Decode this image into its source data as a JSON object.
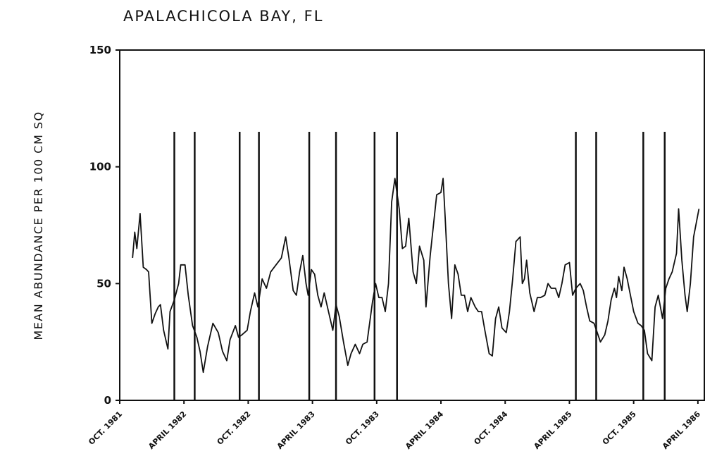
{
  "chart_data": {
    "type": "line",
    "title": "APALACHICOLA BAY, FL",
    "y_label": "MEAN ABUNDANCE PER 100 CM SQ",
    "xlim": [
      0,
      54.6
    ],
    "ylim": [
      0,
      150
    ],
    "yticks": [
      0,
      50,
      100,
      150
    ],
    "xticks": [
      {
        "value": 0,
        "label": "OCT. 1981"
      },
      {
        "value": 6,
        "label": "APRIL 1982"
      },
      {
        "value": 12,
        "label": "OCT. 1982"
      },
      {
        "value": 18,
        "label": "APRIL 1983"
      },
      {
        "value": 24,
        "label": "OCT. 1983"
      },
      {
        "value": 30,
        "label": "APRIL 1984"
      },
      {
        "value": 36,
        "label": "OCT. 1984"
      },
      {
        "value": 42,
        "label": "APRIL 1985"
      },
      {
        "value": 48,
        "label": "OCT. 1985"
      },
      {
        "value": 54,
        "label": "APRIL 1986"
      }
    ],
    "color": "#111111",
    "x": [
      1.2,
      1.4,
      1.6,
      1.9,
      2.2,
      2.5,
      2.7,
      3.0,
      3.3,
      3.6,
      3.8,
      4.1,
      4.5,
      4.7,
      5.1,
      5.5,
      5.7,
      6.1,
      6.4,
      6.8,
      7.2,
      7.5,
      7.8,
      8.2,
      8.7,
      9.2,
      9.6,
      10.0,
      10.3,
      10.8,
      11.1,
      11.4,
      11.9,
      12.2,
      12.6,
      12.9,
      13.3,
      13.7,
      14.1,
      14.6,
      15.1,
      15.5,
      15.8,
      16.2,
      16.5,
      16.8,
      17.1,
      17.4,
      17.6,
      17.9,
      18.2,
      18.5,
      18.8,
      19.1,
      19.5,
      19.9,
      20.2,
      20.5,
      20.9,
      21.3,
      21.6,
      22.0,
      22.4,
      22.7,
      23.1,
      23.6,
      23.9,
      24.2,
      24.5,
      24.8,
      25.1,
      25.4,
      25.7,
      26.1,
      26.4,
      26.7,
      27.0,
      27.4,
      27.7,
      28.0,
      28.4,
      28.6,
      29.0,
      29.3,
      29.6,
      30.0,
      30.2,
      30.4,
      30.7,
      31.0,
      31.3,
      31.6,
      31.9,
      32.2,
      32.5,
      32.8,
      33.2,
      33.5,
      33.8,
      34.1,
      34.5,
      34.8,
      35.1,
      35.4,
      35.7,
      36.1,
      36.4,
      36.7,
      37.0,
      37.4,
      37.6,
      37.8,
      38.0,
      38.3,
      38.7,
      39.0,
      39.3,
      39.7,
      40.0,
      40.3,
      40.7,
      41.0,
      41.3,
      41.6,
      42.0,
      42.3,
      42.6,
      43.0,
      43.3,
      43.6,
      43.9,
      44.3,
      44.6,
      44.9,
      45.3,
      45.6,
      45.9,
      46.2,
      46.4,
      46.6,
      46.9,
      47.1,
      47.4,
      47.7,
      48.0,
      48.4,
      48.7,
      49.0,
      49.3,
      49.7,
      50.0,
      50.3,
      50.7,
      51.0,
      51.3,
      51.6,
      52.0,
      52.2,
      52.5,
      52.8,
      53.0,
      53.3,
      53.6,
      54.1
    ],
    "values": [
      61,
      72,
      65,
      80,
      57,
      56,
      55,
      33,
      37,
      40,
      41,
      30,
      22,
      38,
      43,
      50,
      58,
      58,
      45,
      32,
      27,
      21,
      12,
      23,
      33,
      29,
      21,
      17,
      26,
      32,
      27,
      28,
      30,
      38,
      46,
      40,
      52,
      48,
      55,
      58,
      61,
      70,
      61,
      47,
      45,
      55,
      62,
      50,
      45,
      56,
      54,
      45,
      40,
      46,
      38,
      30,
      41,
      36,
      25,
      15,
      20,
      24,
      20,
      24,
      25,
      42,
      50,
      44,
      44,
      38,
      50,
      85,
      95,
      82,
      65,
      66,
      78,
      55,
      50,
      66,
      60,
      40,
      62,
      75,
      88,
      89,
      95,
      78,
      50,
      35,
      58,
      54,
      45,
      45,
      38,
      44,
      40,
      38,
      38,
      30,
      20,
      19,
      35,
      40,
      31,
      29,
      38,
      52,
      68,
      70,
      50,
      52,
      60,
      46,
      38,
      44,
      44,
      45,
      50,
      48,
      48,
      44,
      50,
      58,
      59,
      45,
      48,
      50,
      47,
      40,
      34,
      33,
      29,
      25,
      28,
      34,
      43,
      48,
      44,
      53,
      47,
      57,
      52,
      45,
      38,
      33,
      32,
      30,
      20,
      17,
      40,
      45,
      35,
      48,
      52,
      55,
      63,
      82,
      60,
      45,
      38,
      50,
      70,
      82
    ],
    "events": [
      5.1,
      7.0,
      11.2,
      13.0,
      17.7,
      20.2,
      23.8,
      25.9,
      42.6,
      44.5,
      48.9,
      50.9
    ],
    "event_top": 115
  }
}
